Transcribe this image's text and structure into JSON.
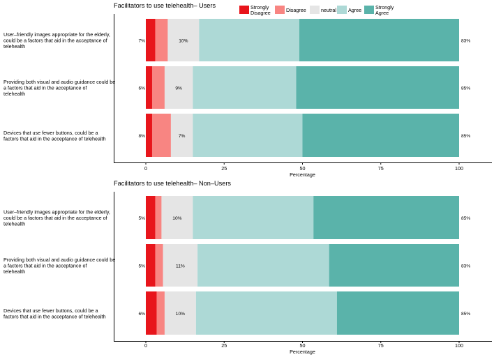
{
  "legend": [
    {
      "label_lines": [
        "Strongly",
        "Disagree"
      ],
      "color": "#e8151b"
    },
    {
      "label_lines": [
        "Disagree"
      ],
      "color": "#f88582"
    },
    {
      "label_lines": [
        "neutral"
      ],
      "color": "#e5e5e5"
    },
    {
      "label_lines": [
        "Agree"
      ],
      "color": "#add9d6"
    },
    {
      "label_lines": [
        "Strongly",
        "Agree"
      ],
      "color": "#5ab3aa"
    }
  ],
  "chart_data": [
    {
      "type": "bar",
      "orientation": "horizontal-stacked",
      "title": "Facilitators to use telehealth– Users",
      "xlabel": "Percentage",
      "xlim": [
        0,
        100
      ],
      "xticks": [
        0,
        25,
        50,
        75,
        100
      ],
      "categories": [
        [
          "User–friendly images appropriate for the elderly,",
          "could be a factors that aid in the acceptance of",
          "telehealth"
        ],
        [
          "Providing both visual and audio guidance could be",
          "a factors that aid in the acceptance of",
          "telehealth"
        ],
        [
          "Devices that use fewer buttons, could be a",
          "factors that aid in the acceptance of telehealth"
        ]
      ],
      "series": [
        {
          "name": "Strongly Disagree",
          "values": [
            3,
            2,
            2
          ]
        },
        {
          "name": "Disagree",
          "values": [
            4,
            4,
            6
          ]
        },
        {
          "name": "neutral",
          "values": [
            10,
            9,
            7
          ]
        },
        {
          "name": "Agree",
          "values": [
            32,
            33,
            35
          ]
        },
        {
          "name": "Strongly Agree",
          "values": [
            51,
            52,
            50
          ]
        }
      ],
      "left_labels": [
        "7%",
        "6%",
        "8%"
      ],
      "center_labels": [
        "10%",
        "9%",
        "7%"
      ],
      "right_labels": [
        "83%",
        "85%",
        "85%"
      ]
    },
    {
      "type": "bar",
      "orientation": "horizontal-stacked",
      "title": "Facilitators to use telehealth– Non–Users",
      "xlabel": "Percentage",
      "xlim": [
        0,
        100
      ],
      "xticks": [
        0,
        25,
        50,
        75,
        100
      ],
      "categories": [
        [
          "User–friendly images appropriate for the elderly,",
          "could be a factors that aid in the acceptance of",
          "telehealth"
        ],
        [
          "Providing both visual and audio guidance could be",
          "a factors that aid in the acceptance of",
          "telehealth"
        ],
        [
          "Devices that use fewer buttons, could be a",
          "factors that aid in the acceptance of telehealth"
        ]
      ],
      "series": [
        {
          "name": "Strongly Disagree",
          "values": [
            3,
            3,
            3.5
          ]
        },
        {
          "name": "Disagree",
          "values": [
            2,
            2.5,
            2.5
          ]
        },
        {
          "name": "neutral",
          "values": [
            10,
            11,
            10
          ]
        },
        {
          "name": "Agree",
          "values": [
            38.5,
            42,
            45
          ]
        },
        {
          "name": "Strongly Agree",
          "values": [
            46.5,
            41.5,
            39
          ]
        }
      ],
      "left_labels": [
        "5%",
        "5%",
        "6%"
      ],
      "center_labels": [
        "10%",
        "11%",
        "10%"
      ],
      "right_labels": [
        "85%",
        "83%",
        "85%"
      ]
    }
  ]
}
